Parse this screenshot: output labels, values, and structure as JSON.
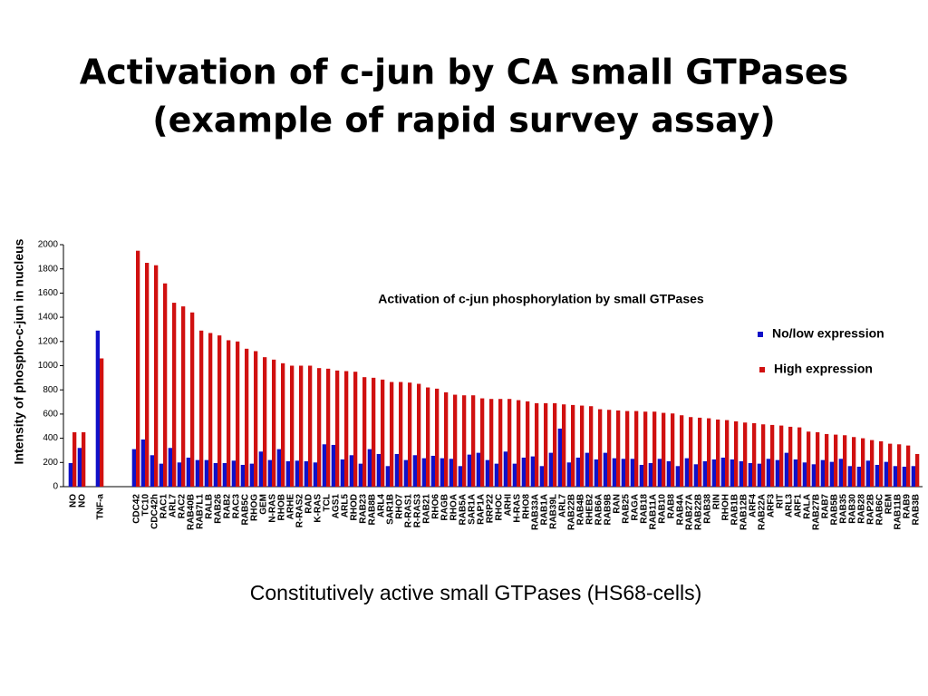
{
  "slide": {
    "title": [
      "Activation of c-jun by CA small GTPases",
      "(example of rapid survey assay)"
    ],
    "caption": "Constitutively active small GTPases (HS68-cells)"
  },
  "chart_data": {
    "type": "bar",
    "title": "Activation of c-jun phosphorylation by small GTPases",
    "y_label": "Intensity of phospho-c-jun in nucleus",
    "ylim": [
      0,
      2000
    ],
    "yticks": [
      0,
      200,
      400,
      600,
      800,
      1000,
      1200,
      1400,
      1600,
      1800,
      2000
    ],
    "legend": "right",
    "categories": [
      "NO",
      "NO",
      null,
      "TNF-a",
      null,
      null,
      null,
      "CDC42",
      "TC10",
      "CDC42h",
      "RAC1",
      "ARL7",
      "RAC2",
      "RAB40B",
      "RAB7L1",
      "RALB",
      "RAB26",
      "RAB2",
      "RAC3",
      "RAB5C",
      "RHOG",
      "GEM",
      "N-RAS",
      "RHOB",
      "ARHE",
      "R-RAS2",
      "RAD",
      "K-RAS",
      "TCL",
      "AGS1",
      "ARL5",
      "RHOD",
      "RAB23",
      "RAB8B",
      "ARL4",
      "SAR1B",
      "RHO7",
      "R-RAS1",
      "R-RAS3",
      "RAB21",
      "RHO6",
      "RAGB",
      "RHOA",
      "RAB5A",
      "SAR1A",
      "RAP1A",
      "RRP22",
      "RHOC",
      "ARHI",
      "H-RAS",
      "RHO8",
      "RAB33A",
      "RAB1A",
      "RAB39L",
      "ARL7",
      "RAB22B",
      "RAB4B",
      "RHEB2",
      "RAB6A",
      "RAB9B",
      "RAN",
      "RAB25",
      "RAGA",
      "RAB18",
      "RAB11A",
      "RAB10",
      "RAB8",
      "RAB4A",
      "RAB27A",
      "RAB22B",
      "RAB38",
      "RIN",
      "RHOH",
      "RAB1B",
      "RAB12B",
      "ARF4",
      "RAB22A",
      "ARF3",
      "RIT",
      "ARL3",
      "ARF1",
      "RALA",
      "RAB27B",
      "RAB7",
      "RAB5B",
      "RAB35",
      "RAB30",
      "RAB28",
      "RAP2B",
      "RAB6C",
      "REM",
      "RAB11B",
      "RAB9",
      "RAB3B"
    ],
    "series": [
      {
        "name": "No/low expression",
        "color": "#1010c8",
        "values": [
          195,
          320,
          null,
          1290,
          null,
          null,
          null,
          310,
          390,
          260,
          190,
          320,
          200,
          240,
          220,
          220,
          195,
          195,
          215,
          180,
          190,
          290,
          220,
          310,
          210,
          215,
          210,
          200,
          350,
          345,
          225,
          260,
          190,
          310,
          270,
          170,
          270,
          220,
          260,
          235,
          255,
          235,
          230,
          170,
          265,
          280,
          220,
          190,
          290,
          190,
          240,
          250,
          170,
          280,
          480,
          200,
          240,
          280,
          225,
          280,
          235,
          230,
          230,
          180,
          195,
          230,
          210,
          170,
          235,
          185,
          210,
          225,
          240,
          225,
          210,
          195,
          190,
          230,
          220,
          280,
          225,
          200,
          185,
          220,
          205,
          230,
          170,
          165,
          215,
          180,
          205,
          170,
          165,
          170
        ]
      },
      {
        "name": "High expression",
        "color": "#d01010",
        "values": [
          450,
          450,
          null,
          1060,
          null,
          null,
          null,
          1950,
          1850,
          1830,
          1680,
          1520,
          1490,
          1440,
          1290,
          1270,
          1250,
          1210,
          1200,
          1140,
          1120,
          1070,
          1050,
          1020,
          1000,
          1000,
          1000,
          980,
          975,
          960,
          955,
          950,
          905,
          900,
          885,
          865,
          865,
          860,
          850,
          820,
          810,
          780,
          760,
          755,
          755,
          730,
          725,
          725,
          725,
          715,
          705,
          690,
          690,
          690,
          680,
          675,
          670,
          665,
          640,
          635,
          630,
          625,
          625,
          620,
          620,
          610,
          605,
          590,
          575,
          570,
          565,
          555,
          550,
          540,
          530,
          525,
          515,
          510,
          505,
          495,
          490,
          455,
          450,
          435,
          430,
          425,
          410,
          400,
          385,
          375,
          355,
          350,
          340,
          270
        ]
      }
    ]
  }
}
